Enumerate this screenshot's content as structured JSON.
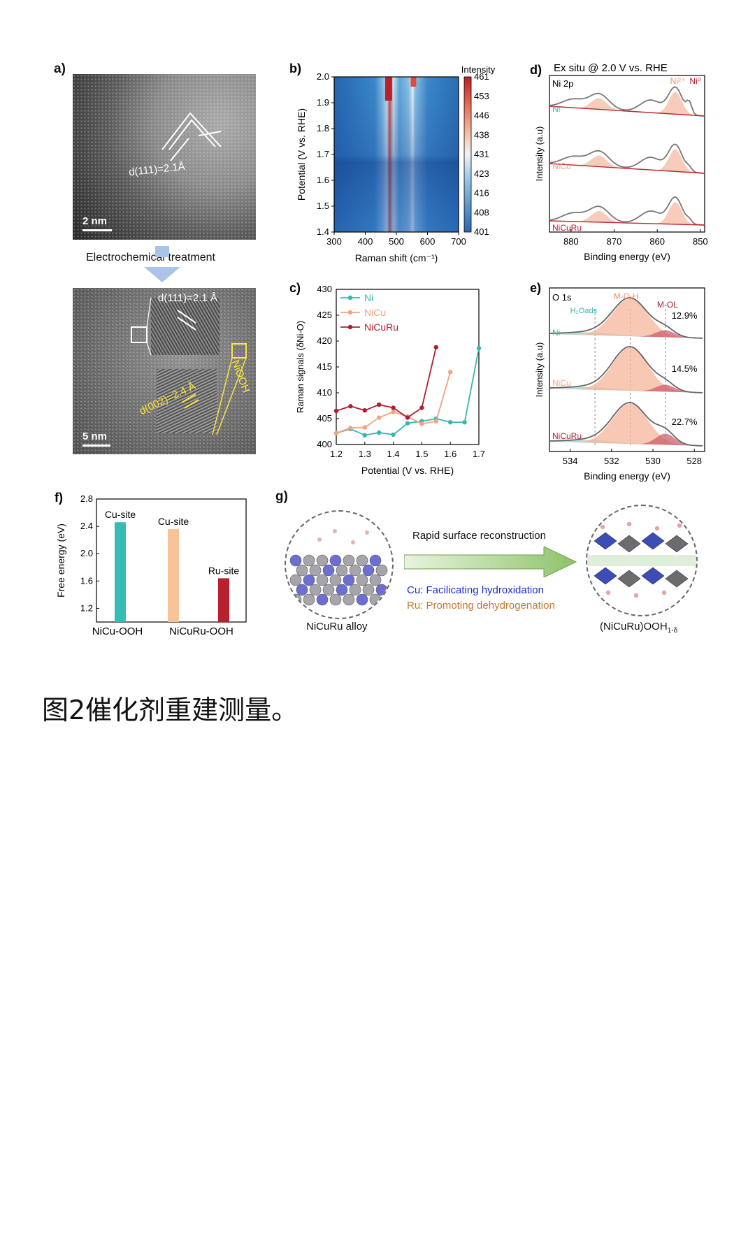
{
  "caption": "图2催化剂重建测量。",
  "panel_a": {
    "label": "a)",
    "top_annotation": "d(111)=2.1Å",
    "top_scale": "2 nm",
    "arrow_text": "Electrochemical treatment",
    "bottom_annotation_1": "d(111)=2.1 Å",
    "bottom_annotation_2": "d(002)=2.4 Å",
    "bottom_annotation_3": "NiOOH",
    "bottom_scale": "5 nm"
  },
  "chart_data": [
    {
      "panel": "b)",
      "type": "heatmap",
      "xlabel": "Raman shift (cm⁻¹)",
      "ylabel": "Potential (V vs. RHE)",
      "colorbar_title": "Intensity",
      "x_ticks": [
        300,
        400,
        500,
        600,
        700
      ],
      "y_ticks": [
        1.4,
        1.5,
        1.6,
        1.7,
        1.8,
        1.9,
        2.0
      ],
      "colorbar_ticks": [
        461,
        453,
        446,
        438,
        431,
        423,
        416,
        408,
        401
      ],
      "xlim": [
        300,
        700
      ],
      "ylim": [
        1.4,
        2.0
      ],
      "peaks_cm": [
        475,
        555
      ],
      "colors": {
        "low": "#2a6db4",
        "high": "#b8212b"
      }
    },
    {
      "panel": "c)",
      "type": "line",
      "xlabel": "Potential (V vs. RHE)",
      "ylabel": "Raman signals (δNi-O)",
      "xlim": [
        1.2,
        1.7
      ],
      "ylim": [
        400,
        430
      ],
      "x_ticks": [
        1.2,
        1.3,
        1.4,
        1.5,
        1.6,
        1.7
      ],
      "y_ticks": [
        400,
        405,
        410,
        415,
        420,
        425,
        430
      ],
      "legend_position": "top-left",
      "series": [
        {
          "name": "Ni",
          "color": "#36b7b0",
          "x": [
            1.2,
            1.25,
            1.3,
            1.35,
            1.4,
            1.45,
            1.5,
            1.55,
            1.6,
            1.65,
            1.7
          ],
          "y": [
            402.2,
            403.0,
            401.8,
            402.3,
            401.9,
            404.1,
            404.5,
            405.0,
            404.3,
            404.3,
            418.6
          ]
        },
        {
          "name": "NiCu",
          "color": "#f2a37e",
          "x": [
            1.2,
            1.25,
            1.3,
            1.35,
            1.4,
            1.45,
            1.5,
            1.55,
            1.6
          ],
          "y": [
            402.2,
            403.2,
            403.3,
            405.2,
            406.3,
            405.4,
            404.0,
            404.5,
            414.0
          ]
        },
        {
          "name": "NiCuRu",
          "color": "#b01e30",
          "x": [
            1.2,
            1.25,
            1.3,
            1.35,
            1.4,
            1.45,
            1.5,
            1.55
          ],
          "y": [
            406.5,
            407.4,
            406.6,
            407.7,
            407.1,
            405.2,
            407.1,
            418.8
          ]
        }
      ]
    },
    {
      "panel": "d)",
      "type": "line",
      "title": "Ex situ @ 2.0 V vs. RHE",
      "region": "Ni 2p",
      "xlabel": "Binding energy (eV)",
      "ylabel": "Intensity (a.u)",
      "x_ticks": [
        880,
        870,
        860,
        850
      ],
      "xlim": [
        885,
        849
      ],
      "series_labels": [
        "Ni",
        "NiCu",
        "NiCuRu"
      ],
      "annotations": [
        "Ni²⁺",
        "Ni⁰"
      ]
    },
    {
      "panel": "e)",
      "type": "line",
      "region": "O 1s",
      "xlabel": "Binding energy (eV)",
      "ylabel": "Intensity (a.u)",
      "x_ticks": [
        534,
        532,
        530,
        528
      ],
      "xlim": [
        535,
        527.5
      ],
      "series_labels": [
        "Ni",
        "NiCu",
        "NiCuRu"
      ],
      "annotations": [
        "H₂Oads",
        "M-OₓH",
        "M-OL"
      ],
      "percentages": [
        "12.9%",
        "14.5%",
        "22.7%"
      ]
    },
    {
      "panel": "f)",
      "type": "bar",
      "ylabel": "Free energy (eV)",
      "ylim": [
        1.0,
        2.8
      ],
      "y_ticks": [
        1.2,
        1.6,
        2.0,
        2.4,
        2.8
      ],
      "group_labels": [
        "NiCu-OOH",
        "NiCuRu-OOH"
      ],
      "bars": [
        {
          "label": "Cu-site",
          "value": 2.46,
          "color": "#35bcb5"
        },
        {
          "label": "Cu-site",
          "value": 2.36,
          "color": "#f8c497"
        },
        {
          "label": "Ru-site",
          "value": 1.64,
          "color": "#b7202c"
        }
      ]
    }
  ],
  "panel_g": {
    "label": "g)",
    "arrow_text": "Rapid surface reconstruction",
    "cu_text": "Cu: Facilicating hydroxidation",
    "ru_text": "Ru: Promoting dehydrogenation",
    "left_label": "NiCuRu alloy",
    "right_label": "(NiCuRu)OOH",
    "right_label_sub": "1-δ",
    "colors": {
      "cu": "#1b2fc9",
      "ru": "#c8782a",
      "arrow": "#8fc36a"
    }
  }
}
